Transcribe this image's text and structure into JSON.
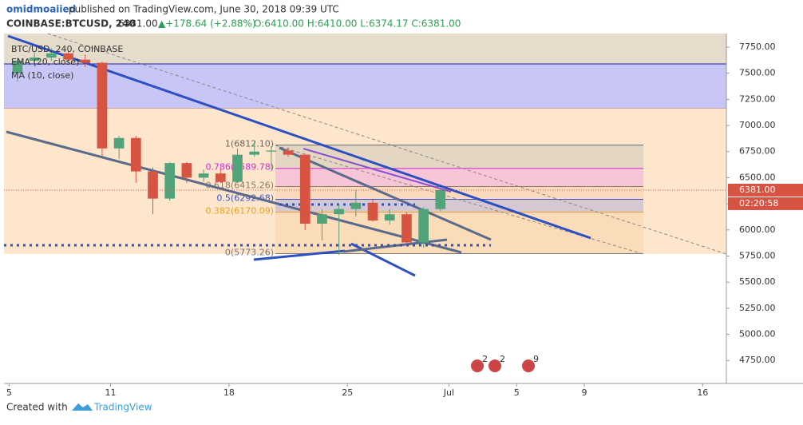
{
  "header": {
    "author": "omidmoaiied",
    "published": "published on TradingView.com, June 30, 2018 09:39 UTC",
    "symbol": "COINBASE:BTCUSD, 240",
    "last": "6381.00",
    "change": "▲+178.64 (+2.88%)",
    "ohlc": "O:6410.00 H:6410.00 L:6374.17 C:6381.00"
  },
  "footer": {
    "created": "Created with",
    "brand": "TradingView"
  },
  "events": [
    "2",
    "2",
    "9"
  ],
  "chart_data": {
    "type": "candlestick",
    "title": "BTC/USD, 240, COINBASE",
    "indicators": [
      "EMA (20, close)",
      "MA (10, close)"
    ],
    "up_color": "#53a37a",
    "down_color": "#d75442",
    "x": [
      5.5,
      6.5,
      7.5,
      8.5,
      9.5,
      10.5,
      11.5,
      12.5,
      13.5,
      14.5,
      15.5,
      16.5,
      17.5,
      18.5,
      19.5,
      20.5,
      21.5,
      22.5,
      23.5,
      24.5,
      25.5,
      26.5,
      27.5,
      28.5,
      29.5,
      30.5
    ],
    "open": [
      7500,
      7620,
      7650,
      7690,
      7630,
      7600,
      6780,
      6880,
      6560,
      6300,
      6640,
      6500,
      6540,
      6460,
      6720,
      6750,
      6760,
      6720,
      6060,
      6150,
      6200,
      6260,
      6090,
      6150,
      5880,
      6200
    ],
    "high": [
      7650,
      7700,
      7740,
      7710,
      7680,
      7610,
      6900,
      6900,
      6600,
      6650,
      6650,
      6580,
      6580,
      6780,
      6840,
      6800,
      6790,
      6730,
      6200,
      6250,
      6380,
      6300,
      6200,
      6170,
      6220,
      6410
    ],
    "low": [
      7420,
      7560,
      7620,
      7600,
      7560,
      6700,
      6680,
      6450,
      6150,
      6280,
      6450,
      6460,
      6450,
      6450,
      6700,
      6580,
      6700,
      6000,
      5900,
      5760,
      6130,
      6080,
      6050,
      5850,
      5830,
      6180
    ],
    "close": [
      7620,
      7650,
      7690,
      7630,
      7600,
      6780,
      6880,
      6560,
      6300,
      6640,
      6500,
      6540,
      6460,
      6720,
      6750,
      6760,
      6720,
      6060,
      6150,
      6200,
      6260,
      6090,
      6150,
      5880,
      6200,
      6381
    ],
    "xlim": [
      4.7,
      47.4
    ],
    "xticks": [
      5,
      11,
      18,
      25,
      {
        "value": 31,
        "label": "Jul"
      },
      {
        "value": 35,
        "label": "5"
      },
      {
        "value": 39,
        "label": "9"
      },
      {
        "value": 46,
        "label": "16"
      }
    ],
    "ylim": [
      4530,
      7880
    ],
    "yticks": [
      {
        "value": 4750,
        "label": "4750.00"
      },
      {
        "value": 5000,
        "label": "5000.00"
      },
      {
        "value": 5250,
        "label": "5250.00"
      },
      {
        "value": 5500,
        "label": "5500.00"
      },
      {
        "value": 5750,
        "label": "5750.00"
      },
      {
        "value": 6000,
        "label": "6000.00"
      },
      {
        "value": 6250,
        "label": "6250.00"
      },
      {
        "value": 6500,
        "label": "6500.00"
      },
      {
        "value": 6750,
        "label": "6750.00"
      },
      {
        "value": 7000,
        "label": "7000.00"
      },
      {
        "value": 7250,
        "label": "7250.00"
      },
      {
        "value": 7500,
        "label": "7500.00"
      },
      {
        "value": 7750,
        "label": "7750.00"
      }
    ],
    "last_price": {
      "value": 6381,
      "label": "6381.00"
    },
    "countdown": "02:20:58",
    "fib_levels": [
      {
        "value": 6812.1,
        "label": "1(6812.10)",
        "color": "#666666",
        "fill": "#e3d6c3"
      },
      {
        "value": 6589.78,
        "label": "0.786(6589.78)",
        "color": "#d22fd0",
        "fill": "#f8c4d8"
      },
      {
        "value": 6415.26,
        "label": "0.618(6415.26)",
        "color": "#8a7a66",
        "fill": "#fbd9bd"
      },
      {
        "value": 6292.68,
        "label": "0.5(6292.68)",
        "color": "#3d57c9",
        "fill": "#d6c8d2"
      },
      {
        "value": 6170.09,
        "label": "0.382(6170.09)",
        "color": "#f0a020",
        "fill": "#fbdcb8"
      },
      {
        "value": 5773.26,
        "label": "0(5773.26)",
        "color": "#777777",
        "fill": null
      }
    ]
  }
}
